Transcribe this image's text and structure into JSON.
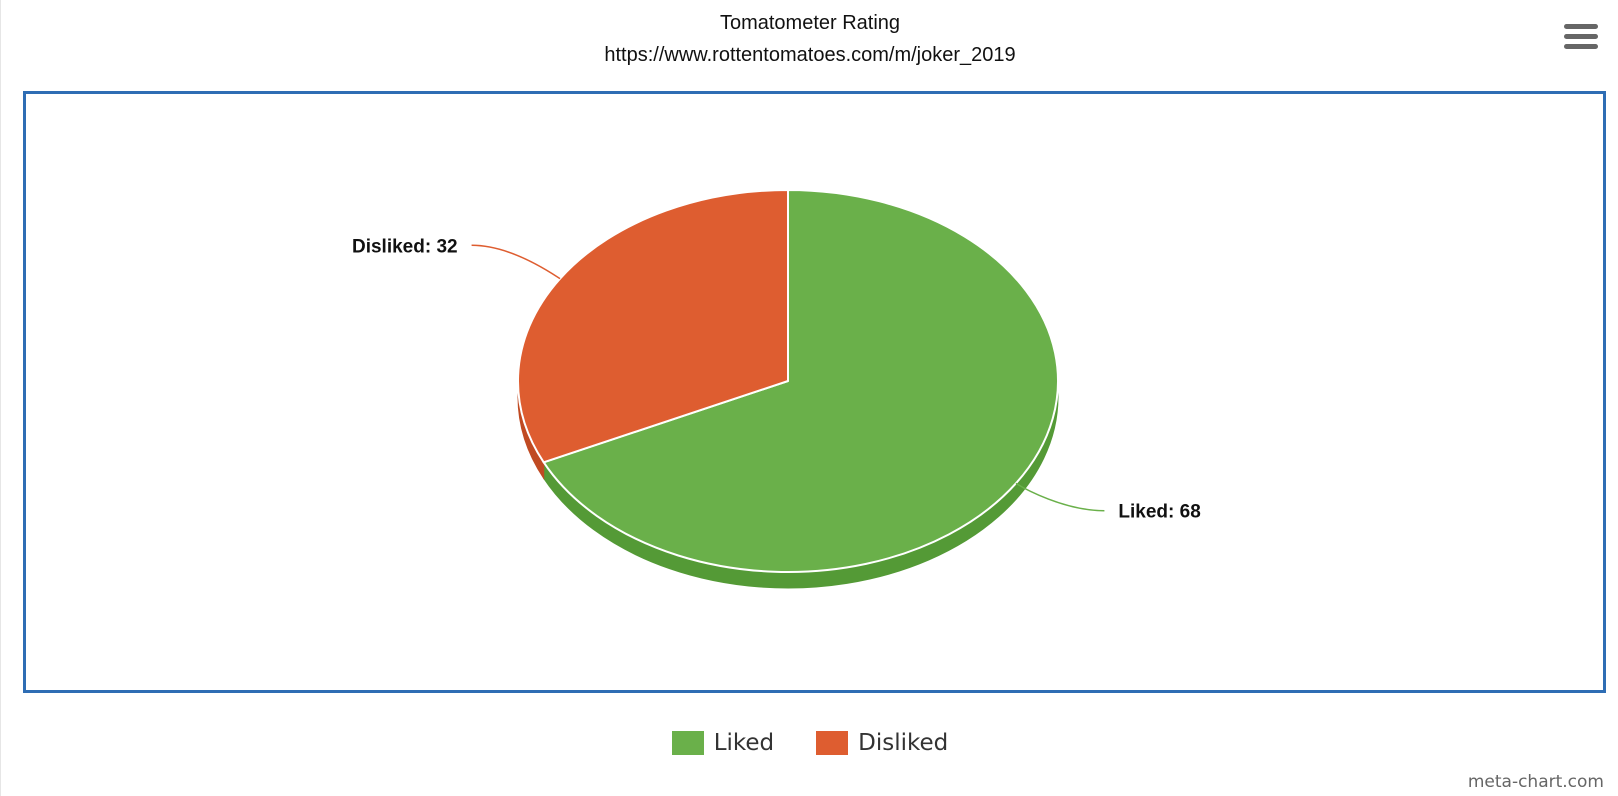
{
  "chart_data": {
    "type": "pie",
    "title": "Tomatometer Rating",
    "subtitle": "https://www.rottentomatoes.com/m/joker_2019",
    "slices": [
      {
        "name": "Liked",
        "value": 68,
        "label": "Liked: 68",
        "color": "#6ab04a",
        "side_color": "#549a36"
      },
      {
        "name": "Disliked",
        "value": 32,
        "label": "Disliked: 32",
        "color": "#de5d30",
        "side_color": "#c04a22"
      }
    ],
    "legend_placement": "bottom-center",
    "three_d": true
  },
  "menu": {
    "icon": "hamburger-icon"
  },
  "credit": "meta-chart.com"
}
